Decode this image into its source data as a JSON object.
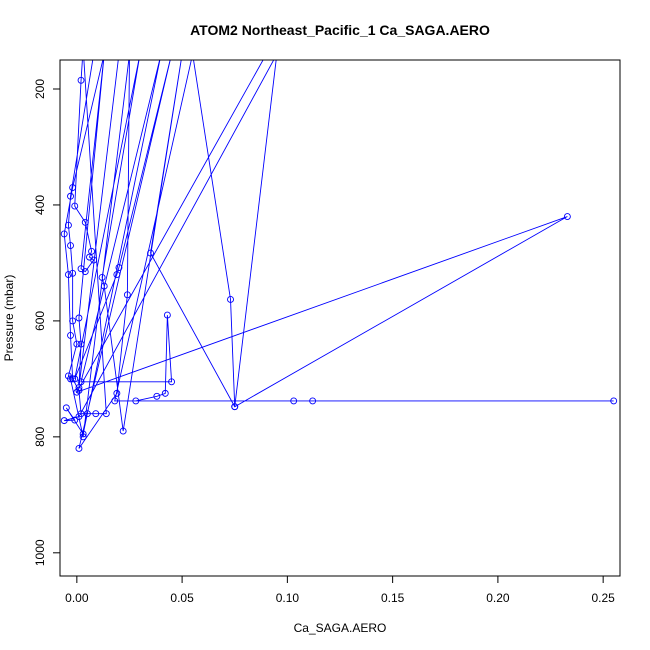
{
  "chart_data": {
    "type": "line",
    "title": "ATOM2 Northeast_Pacific_1 Ca_SAGA.AERO",
    "xlabel": "Ca_SAGA.AERO",
    "ylabel": "Pressure (mbar)",
    "xlim": [
      -0.008,
      0.258
    ],
    "ylim": [
      1040,
      150
    ],
    "y_reversed": true,
    "grid": false,
    "x_ticks": [
      {
        "value": 0.0,
        "label": "0.00"
      },
      {
        "value": 0.05,
        "label": "0.05"
      },
      {
        "value": 0.1,
        "label": "0.10"
      },
      {
        "value": 0.15,
        "label": "0.15"
      },
      {
        "value": 0.2,
        "label": "0.20"
      },
      {
        "value": 0.25,
        "label": "0.25"
      }
    ],
    "y_ticks": [
      {
        "value": 200,
        "label": "200"
      },
      {
        "value": 400,
        "label": "400"
      },
      {
        "value": 600,
        "label": "600"
      },
      {
        "value": 800,
        "label": "800"
      },
      {
        "value": 1000,
        "label": "1000"
      }
    ],
    "series": [
      {
        "color": "#0000ff",
        "points": [
          [
            0.013,
            140
          ],
          [
            -0.002,
            370
          ],
          [
            -0.006,
            450
          ],
          [
            -0.004,
            520
          ],
          [
            -0.003,
            625
          ],
          [
            -0.002,
            700
          ],
          [
            0.001,
            720
          ],
          [
            0.002,
            760
          ],
          [
            0.005,
            760
          ],
          [
            0.009,
            760
          ],
          [
            0.014,
            760
          ],
          [
            0.003,
            130
          ],
          [
            0.002,
            185
          ],
          [
            -0.001,
            402
          ],
          [
            0.004,
            430
          ],
          [
            0.007,
            480
          ],
          [
            0.006,
            490
          ],
          [
            0.008,
            495
          ],
          [
            0.004,
            515
          ],
          [
            0.002,
            510
          ],
          [
            0.013,
            140
          ],
          [
            0.001,
            595
          ],
          [
            0.002,
            640
          ],
          [
            0.001,
            715
          ],
          [
            0.02,
            140
          ],
          [
            0.008,
            140
          ],
          [
            -0.003,
            385
          ],
          [
            -0.004,
            435
          ],
          [
            -0.003,
            470
          ],
          [
            -0.002,
            518
          ],
          [
            -0.002,
            600
          ],
          [
            0.0,
            640
          ],
          [
            -0.004,
            695
          ],
          [
            -0.003,
            700
          ],
          [
            0.003,
            800
          ],
          [
            0.025,
            140
          ],
          [
            0.024,
            555
          ],
          [
            0.019,
            725
          ],
          [
            0.001,
            820
          ],
          [
            0.045,
            140
          ],
          [
            0.02,
            508
          ],
          [
            0.019,
            520
          ],
          [
            -0.001,
            700
          ],
          [
            0.03,
            140
          ],
          [
            0.012,
            525
          ],
          [
            0.013,
            540
          ],
          [
            0.022,
            790
          ],
          [
            0.05,
            140
          ],
          [
            0.035,
            483
          ],
          [
            0.075,
            748
          ],
          [
            0.233,
            420
          ],
          [
            0.0,
            723
          ],
          [
            0.09,
            140
          ],
          [
            0.04,
            140
          ],
          [
            0.002,
            705
          ],
          [
            0.045,
            705
          ],
          [
            0.043,
            590
          ],
          [
            0.042,
            725
          ],
          [
            0.038,
            730
          ],
          [
            0.028,
            738
          ],
          [
            0.103,
            738
          ],
          [
            0.112,
            738
          ],
          [
            0.255,
            738
          ],
          [
            0.018,
            738
          ],
          [
            0.055,
            140
          ],
          [
            0.073,
            563
          ],
          [
            0.075,
            748
          ],
          [
            0.095,
            140
          ],
          [
            0.001,
            765
          ],
          [
            -0.006,
            772
          ],
          [
            -0.001,
            771
          ],
          [
            -0.005,
            750
          ],
          [
            0.003,
            795
          ],
          [
            0.04,
            140
          ]
        ]
      }
    ]
  }
}
